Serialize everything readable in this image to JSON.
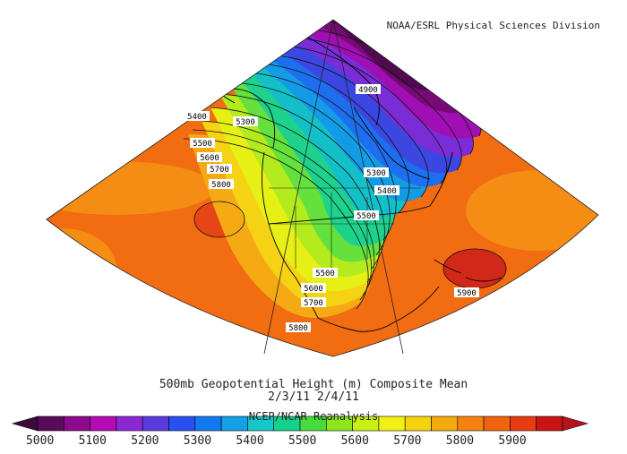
{
  "credit": "NOAA/ESRL Physical Sciences Division",
  "title": "500mb Geopotential Height (m) Composite Mean",
  "dates": "2/3/11 2/4/11",
  "source": "NCEP/NCAR Reanalysis",
  "units": "m",
  "contour_labels": [
    "4900",
    "5300",
    "5400",
    "5500",
    "5600",
    "5700",
    "5800",
    "5300",
    "5400",
    "5500",
    "5500",
    "5600",
    "5700",
    "5800",
    "5900"
  ],
  "colorbar": {
    "tick_labels": [
      "5000",
      "5100",
      "5200",
      "5300",
      "5400",
      "5500",
      "5600",
      "5700",
      "5800",
      "5900"
    ],
    "colors": [
      "#5a0a5a",
      "#8c0a8c",
      "#b40ab4",
      "#8c28d2",
      "#5a3cdc",
      "#2850f0",
      "#1478f0",
      "#14a0e6",
      "#14c8c8",
      "#14d28c",
      "#46dc3c",
      "#8ce61e",
      "#c8f014",
      "#f0f014",
      "#f5d20f",
      "#f5aa0f",
      "#f5820f",
      "#f0640f",
      "#e63c0f",
      "#c81414"
    ]
  },
  "chart_data": {
    "type": "heatmap",
    "variable": "500mb Geopotential Height",
    "units": "m",
    "contour_interval": 50,
    "labeled_contours": [
      4900,
      5300,
      5400,
      5500,
      5600,
      5700,
      5800,
      5900
    ],
    "colorbar_range": [
      5000,
      5900
    ],
    "dates": "2/3/11 2/4/11"
  }
}
